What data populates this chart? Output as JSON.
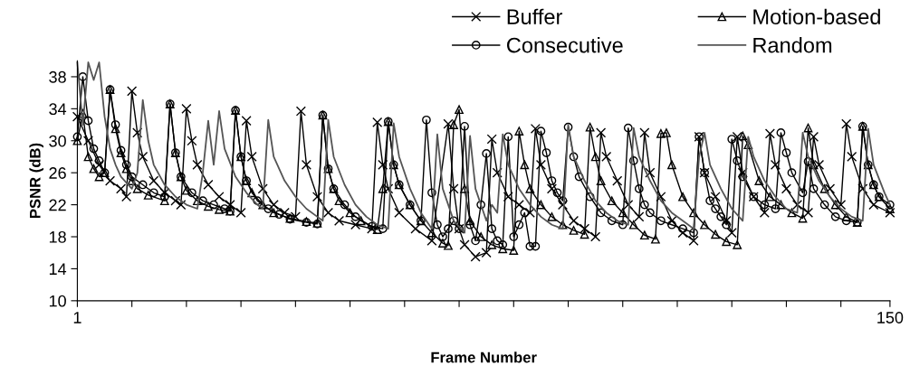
{
  "chart_data": {
    "type": "line",
    "xlabel": "Frame Number",
    "ylabel": "PSNR (dB)",
    "xlim": [
      1,
      150
    ],
    "xticks": [
      1,
      {
        "value": 11,
        "label": null
      },
      {
        "value": 21,
        "label": null
      },
      {
        "value": 31,
        "label": null
      },
      {
        "value": 41,
        "label": null
      },
      {
        "value": 51,
        "label": null
      },
      {
        "value": 61,
        "label": null
      },
      {
        "value": 71,
        "label": null
      },
      {
        "value": 81,
        "label": null
      },
      {
        "value": 91,
        "label": null
      },
      {
        "value": 101,
        "label": null
      },
      {
        "value": 111,
        "label": null
      },
      {
        "value": 121,
        "label": null
      },
      {
        "value": 131,
        "label": null
      },
      {
        "value": 141,
        "label": null
      },
      150
    ],
    "ylim": [
      10,
      40
    ],
    "yticks": [
      10,
      14,
      18,
      22,
      26,
      30,
      34,
      38
    ],
    "grid": false,
    "legend": "top right",
    "series": [
      {
        "name": "Buffer",
        "color": "#000000",
        "marker": "cross",
        "x": [
          1,
          3,
          5,
          7,
          9,
          10,
          11,
          12,
          13,
          15,
          17,
          19,
          20,
          21,
          22,
          23,
          25,
          27,
          29,
          31,
          32,
          33,
          35,
          37,
          39,
          41,
          42,
          43,
          45,
          47,
          49,
          52,
          55,
          56,
          57,
          58,
          60,
          63,
          66,
          69,
          70,
          71,
          72,
          74,
          76,
          77,
          78,
          80,
          82,
          84,
          85,
          86,
          88,
          90,
          92,
          94,
          96,
          97,
          98,
          100,
          102,
          104,
          105,
          106,
          108,
          110,
          112,
          114,
          115,
          116,
          118,
          120,
          121,
          122,
          123,
          125,
          127,
          128,
          129,
          131,
          133,
          135,
          136,
          137,
          139,
          141,
          142,
          143,
          145,
          147,
          150
        ],
        "values": [
          33,
          30,
          27,
          25,
          24,
          23,
          36.2,
          31,
          28,
          25,
          23.5,
          22.5,
          22,
          34,
          30,
          27,
          24.5,
          23,
          22,
          21,
          32.5,
          28,
          24,
          22,
          21,
          20.5,
          33.7,
          27,
          23,
          21,
          20,
          19.5,
          19,
          32.3,
          27,
          24,
          21,
          19,
          17.5,
          32.1,
          24,
          19,
          17,
          15.5,
          16,
          30.2,
          26,
          23,
          22,
          21,
          31.5,
          27,
          24,
          22,
          20,
          19,
          18,
          31,
          28,
          25,
          22,
          20.5,
          31,
          26,
          23,
          20,
          18.5,
          17.5,
          30.5,
          26,
          23,
          20,
          18.5,
          30.5,
          26,
          23,
          21,
          30.9,
          27,
          24,
          22,
          21,
          30.5,
          27,
          24,
          22,
          32.1,
          28,
          24,
          22,
          21
        ]
      },
      {
        "name": "Motion-based",
        "color": "#000000",
        "marker": "triangle",
        "x": [
          1,
          2,
          3,
          4,
          5,
          6,
          7,
          8,
          9,
          10,
          11,
          12,
          14,
          17,
          18,
          19,
          20,
          21,
          23,
          25,
          27,
          29,
          30,
          31,
          32,
          33,
          35,
          37,
          40,
          43,
          45,
          46,
          47,
          48,
          49,
          51,
          53,
          56,
          57,
          58,
          59,
          60,
          62,
          64,
          66,
          68,
          69,
          70,
          71,
          72,
          73,
          75,
          77,
          79,
          81,
          82,
          83,
          84,
          86,
          88,
          90,
          92,
          94,
          95,
          96,
          97,
          99,
          101,
          103,
          105,
          107,
          108,
          109,
          110,
          112,
          114,
          116,
          118,
          120,
          122,
          123,
          124,
          126,
          128,
          130,
          132,
          134,
          135,
          136,
          138,
          140,
          142,
          144,
          145,
          146,
          147,
          148,
          150
        ],
        "values": [
          30,
          33.4,
          28,
          26.5,
          25.5,
          26,
          36.4,
          31.5,
          28.5,
          26.5,
          25,
          24,
          23.2,
          22.5,
          34.6,
          28.5,
          25.5,
          23.8,
          22.5,
          21.8,
          21.4,
          21.2,
          33.8,
          28,
          25,
          23.5,
          22,
          21,
          20.3,
          19.9,
          19.7,
          33.2,
          26.5,
          24,
          22.5,
          21,
          20,
          18.9,
          24,
          32.4,
          27,
          24.5,
          22,
          20,
          18.5,
          17.2,
          16.9,
          32,
          33.9,
          24,
          20,
          18,
          17,
          16.5,
          16.3,
          31.2,
          27,
          24,
          22,
          20.5,
          19.5,
          18.8,
          18.3,
          31.7,
          28,
          25,
          22.5,
          21,
          19.5,
          18.2,
          17.7,
          30.9,
          31,
          27,
          23,
          21,
          19.5,
          18.3,
          17.4,
          17,
          30.6,
          29.5,
          25,
          23,
          22,
          21,
          20.3,
          31.6,
          27,
          24,
          22,
          20.5,
          19.8,
          31.8,
          27,
          24.5,
          23,
          21.5
        ]
      },
      {
        "name": "Consecutive",
        "color": "#000000",
        "marker": "circle",
        "x": [
          1,
          2,
          3,
          4,
          5,
          6,
          7,
          8,
          9,
          10,
          11,
          13,
          15,
          17,
          18,
          19,
          20,
          22,
          24,
          26,
          28,
          29,
          30,
          31,
          32,
          34,
          36,
          38,
          40,
          43,
          45,
          46,
          47,
          48,
          50,
          52,
          55,
          57,
          58,
          59,
          60,
          62,
          64,
          65,
          66,
          67,
          68,
          69,
          70,
          71,
          72,
          73,
          74,
          75,
          76,
          77,
          78,
          79,
          80,
          81,
          82,
          83,
          84,
          85,
          86,
          87,
          88,
          89,
          90,
          91,
          92,
          93,
          95,
          97,
          99,
          101,
          102,
          103,
          104,
          105,
          106,
          108,
          110,
          112,
          114,
          115,
          116,
          117,
          118,
          119,
          120,
          121,
          122,
          123,
          125,
          127,
          129,
          130,
          131,
          132,
          134,
          135,
          136,
          138,
          140,
          142,
          144,
          145,
          146,
          147,
          148,
          150
        ],
        "values": [
          30.5,
          38,
          32.5,
          29,
          27.5,
          26,
          36.4,
          32,
          28.8,
          27,
          25.5,
          24.5,
          23.5,
          23,
          34.6,
          28.5,
          25.5,
          23.5,
          22.5,
          22,
          21.5,
          21.2,
          33.8,
          28,
          25,
          22.5,
          21.5,
          20.8,
          20.2,
          19.8,
          19.6,
          33.2,
          26.5,
          24,
          22,
          20.5,
          19.3,
          19,
          32.4,
          27,
          24.5,
          22,
          20,
          32.6,
          23.5,
          19.5,
          18,
          19,
          20,
          19,
          31.8,
          19.5,
          17.5,
          22,
          28.4,
          19,
          17.5,
          17,
          30.5,
          18,
          19.5,
          21,
          16.8,
          16.8,
          31.2,
          28.5,
          25,
          23.5,
          22.5,
          31.7,
          28,
          25.5,
          23,
          21,
          20,
          19.5,
          31.6,
          27.5,
          24,
          22,
          21,
          20,
          19.5,
          19,
          18.5,
          30.5,
          26,
          22.5,
          21.5,
          20.5,
          19.5,
          30.2,
          27.5,
          25.5,
          23,
          22,
          21.5,
          31,
          28.5,
          26,
          23.5,
          27.4,
          24,
          22,
          20.5,
          20,
          19.8,
          31.8,
          27,
          24.5,
          23,
          22
        ]
      },
      {
        "name": "Random",
        "color": "#555555",
        "marker": "none",
        "x": [
          1,
          2,
          3,
          4,
          5,
          6,
          7,
          8,
          9,
          11,
          12,
          13,
          14,
          15,
          17,
          19,
          21,
          23,
          24,
          25,
          26,
          27,
          28,
          30,
          32,
          34,
          35,
          36,
          37,
          39,
          41,
          43,
          45,
          46,
          47,
          48,
          50,
          52,
          54,
          56,
          58,
          59,
          60,
          62,
          64,
          66,
          67,
          68,
          70,
          72,
          73,
          74,
          76,
          77,
          78,
          79,
          80,
          82,
          84,
          86,
          88,
          90,
          91,
          92,
          94,
          96,
          98,
          100,
          102,
          103,
          104,
          106,
          108,
          110,
          112,
          114,
          115,
          116,
          117,
          119,
          121,
          123,
          124,
          125,
          127,
          129,
          131,
          133,
          134,
          135,
          137,
          139,
          141,
          143,
          145,
          146,
          147,
          149,
          150
        ],
        "values": [
          39.8,
          32,
          39.8,
          37.6,
          39.8,
          33,
          29,
          27,
          25.5,
          24,
          26,
          35.1,
          30,
          27,
          24.5,
          23,
          22,
          21.5,
          26,
          32.5,
          27,
          33.7,
          29,
          25.5,
          23.5,
          22,
          21.5,
          32.6,
          28,
          25,
          23,
          21.5,
          20.5,
          20,
          32.6,
          28,
          24.5,
          22,
          20.5,
          19.5,
          19,
          32.2,
          28,
          24,
          21,
          19,
          30.8,
          24,
          20,
          18.5,
          30.6,
          24,
          20,
          22,
          21,
          30.8,
          27,
          24,
          22,
          20.5,
          19.5,
          19,
          32,
          28,
          25,
          22.5,
          21,
          20,
          19.5,
          31.6,
          28,
          25,
          22.5,
          21,
          20,
          19,
          28,
          31,
          27,
          24,
          21.5,
          20,
          30.5,
          28,
          25,
          23,
          21.5,
          21,
          31,
          28,
          25,
          23,
          21.5,
          20.5,
          20,
          31.5,
          27,
          23.5,
          22
        ]
      }
    ]
  }
}
